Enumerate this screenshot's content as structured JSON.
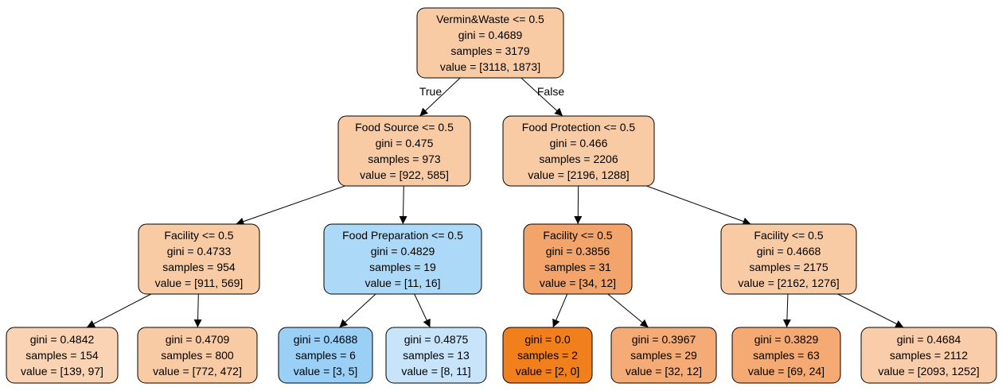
{
  "edge_labels": {
    "true_label": "True",
    "false_label": "False"
  },
  "nodes": [
    {
      "id": "root",
      "color": "#f9cba4",
      "lines": [
        "Vermin&Waste <= 0.5",
        "gini = 0.4689",
        "samples = 3179",
        "value = [3118, 1873]"
      ]
    },
    {
      "id": "food-source",
      "color": "#f9cba4",
      "lines": [
        "Food Source <= 0.5",
        "gini = 0.475",
        "samples = 973",
        "value = [922, 585]"
      ]
    },
    {
      "id": "food-protection",
      "color": "#f9cba4",
      "lines": [
        "Food Protection <= 0.5",
        "gini = 0.466",
        "samples = 2206",
        "value = [2196, 1288]"
      ]
    },
    {
      "id": "facility-left",
      "color": "#f9cba4",
      "lines": [
        "Facility <= 0.5",
        "gini = 0.4733",
        "samples = 954",
        "value = [911, 569]"
      ]
    },
    {
      "id": "food-preparation",
      "color": "#add9f8",
      "lines": [
        "Food Preparation <= 0.5",
        "gini = 0.4829",
        "samples = 19",
        "value = [11, 16]"
      ]
    },
    {
      "id": "facility-mid",
      "color": "#f3a46a",
      "lines": [
        "Facility <= 0.5",
        "gini = 0.3856",
        "samples = 31",
        "value = [34, 12]"
      ]
    },
    {
      "id": "facility-right",
      "color": "#f9cba4",
      "lines": [
        "Facility <= 0.5",
        "gini = 0.4668",
        "samples = 2175",
        "value = [2162, 1276]"
      ]
    },
    {
      "id": "leaf-1",
      "color": "#f9d3b3",
      "lines": [
        "gini = 0.4842",
        "samples = 154",
        "value = [139, 97]"
      ]
    },
    {
      "id": "leaf-2",
      "color": "#f9cba4",
      "lines": [
        "gini = 0.4709",
        "samples = 800",
        "value = [772, 472]"
      ]
    },
    {
      "id": "leaf-3",
      "color": "#9bd0f6",
      "lines": [
        "gini = 0.4688",
        "samples = 6",
        "value = [3, 5]"
      ]
    },
    {
      "id": "leaf-4",
      "color": "#c7e4fa",
      "lines": [
        "gini = 0.4875",
        "samples = 13",
        "value = [8, 11]"
      ]
    },
    {
      "id": "leaf-5",
      "color": "#f07f1c",
      "lines": [
        "gini = 0.0",
        "samples = 2",
        "value = [2, 0]"
      ]
    },
    {
      "id": "leaf-6",
      "color": "#f5ab76",
      "lines": [
        "gini = 0.3967",
        "samples = 29",
        "value = [32, 12]"
      ]
    },
    {
      "id": "leaf-7",
      "color": "#f5a973",
      "lines": [
        "gini = 0.3829",
        "samples = 63",
        "value = [69, 24]"
      ]
    },
    {
      "id": "leaf-8",
      "color": "#f9ccaa",
      "lines": [
        "gini = 0.4684",
        "samples = 2112",
        "value = [2093, 1252]"
      ]
    }
  ],
  "edges": [
    {
      "from": "root",
      "to": "food-source"
    },
    {
      "from": "root",
      "to": "food-protection"
    },
    {
      "from": "food-source",
      "to": "facility-left"
    },
    {
      "from": "food-source",
      "to": "food-preparation"
    },
    {
      "from": "food-protection",
      "to": "facility-mid"
    },
    {
      "from": "food-protection",
      "to": "facility-right"
    },
    {
      "from": "facility-left",
      "to": "leaf-1"
    },
    {
      "from": "facility-left",
      "to": "leaf-2"
    },
    {
      "from": "food-preparation",
      "to": "leaf-3"
    },
    {
      "from": "food-preparation",
      "to": "leaf-4"
    },
    {
      "from": "facility-mid",
      "to": "leaf-5"
    },
    {
      "from": "facility-mid",
      "to": "leaf-6"
    },
    {
      "from": "facility-right",
      "to": "leaf-7"
    },
    {
      "from": "facility-right",
      "to": "leaf-8"
    }
  ]
}
